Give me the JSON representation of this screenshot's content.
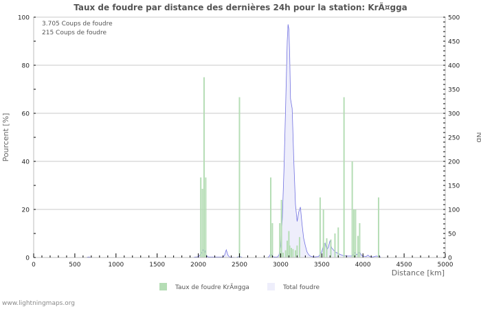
{
  "page": {
    "title": "Taux de foudre par distance des dernières 24h pour la station: KrÃ¤gga",
    "info_lines": [
      "3.705  Coups de foudre",
      "215  Coups de foudre"
    ],
    "watermark": "www.lightningmaps.org",
    "colors": {
      "bars": "#b5ddb5",
      "line": "#7070e0",
      "area": "#eeeefb",
      "grid": "#c8c8c8",
      "axis_text": "#555555"
    }
  },
  "chart_data": {
    "type": "bar",
    "title": "Taux de foudre par distance des dernières 24h pour la station: KrÃ¤gga",
    "xlabel": "Distance   [km]",
    "ylabel": "Pourcent   [%]",
    "y2label": "Nb",
    "xlim": [
      0,
      5000
    ],
    "ylim": [
      0,
      100
    ],
    "y2lim": [
      0,
      500
    ],
    "x_ticks": [
      0,
      500,
      1000,
      1500,
      2000,
      2500,
      3000,
      3500,
      4000,
      4500,
      5000
    ],
    "y_ticks": [
      0,
      20,
      40,
      60,
      80,
      100
    ],
    "y2_ticks": [
      0,
      50,
      100,
      150,
      200,
      250,
      300,
      350,
      400,
      450,
      500
    ],
    "grid": true,
    "legend": {
      "position": "bottom",
      "entries": [
        "Taux de foudre KrÃ¤gga",
        "Total foudre"
      ]
    },
    "annotations": [
      "3.705  Coups de foudre",
      "215  Coups de foudre"
    ],
    "series": [
      {
        "name": "Taux de foudre KrÃ¤gga",
        "type": "bar",
        "axis": "left",
        "x": [
          2030,
          2050,
          2070,
          2090,
          2500,
          2880,
          2900,
          2990,
          3010,
          3030,
          3060,
          3080,
          3100,
          3110,
          3130,
          3150,
          3180,
          3200,
          3230,
          3480,
          3520,
          3530,
          3560,
          3610,
          3660,
          3700,
          3770,
          3870,
          3890,
          3910,
          3940,
          3960,
          4190
        ],
        "values": [
          33.3,
          28.6,
          75.0,
          33.3,
          66.7,
          33.3,
          14.3,
          14.3,
          24.0,
          2.0,
          3.0,
          7.0,
          11.0,
          5.0,
          4.0,
          3.5,
          3.0,
          5.0,
          8.5,
          25.0,
          20.0,
          6.0,
          8.0,
          7.5,
          10.0,
          12.5,
          66.7,
          40.0,
          20.0,
          20.0,
          9.0,
          14.3,
          25.0
        ]
      },
      {
        "name": "Total foudre",
        "type": "area",
        "axis": "right",
        "x": [
          0,
          640,
          660,
          680,
          700,
          1940,
          1960,
          1980,
          2000,
          2020,
          2040,
          2060,
          2070,
          2080,
          2100,
          2120,
          2300,
          2320,
          2340,
          2360,
          2380,
          2460,
          2480,
          2500,
          2520,
          2540,
          2580,
          2840,
          2860,
          2880,
          2900,
          2920,
          2940,
          2960,
          2980,
          3000,
          3020,
          3040,
          3060,
          3080,
          3090,
          3100,
          3110,
          3120,
          3140,
          3160,
          3180,
          3200,
          3220,
          3240,
          3260,
          3280,
          3300,
          3320,
          3340,
          3360,
          3400,
          3460,
          3500,
          3520,
          3540,
          3560,
          3580,
          3600,
          3620,
          3660,
          3700,
          3760,
          3800,
          3860,
          3880,
          3900,
          3920,
          3940,
          3960,
          3980,
          4000,
          4040,
          4060,
          4080,
          4120,
          4160,
          4200,
          4220,
          5000
        ],
        "values": [
          0,
          0,
          1,
          1,
          0,
          0,
          1,
          1,
          2,
          5,
          10,
          15,
          20,
          12,
          4,
          1,
          1,
          5,
          16,
          5,
          1,
          0,
          1,
          3,
          1,
          0,
          0,
          0,
          2,
          8,
          3,
          1,
          1,
          1,
          5,
          25,
          80,
          180,
          310,
          450,
          485,
          475,
          420,
          330,
          310,
          200,
          110,
          75,
          95,
          105,
          70,
          40,
          25,
          12,
          6,
          3,
          1,
          2,
          12,
          25,
          30,
          15,
          22,
          35,
          20,
          12,
          8,
          4,
          3,
          3,
          5,
          10,
          6,
          8,
          12,
          5,
          3,
          2,
          5,
          2,
          1,
          3,
          2,
          0,
          0
        ]
      }
    ]
  }
}
